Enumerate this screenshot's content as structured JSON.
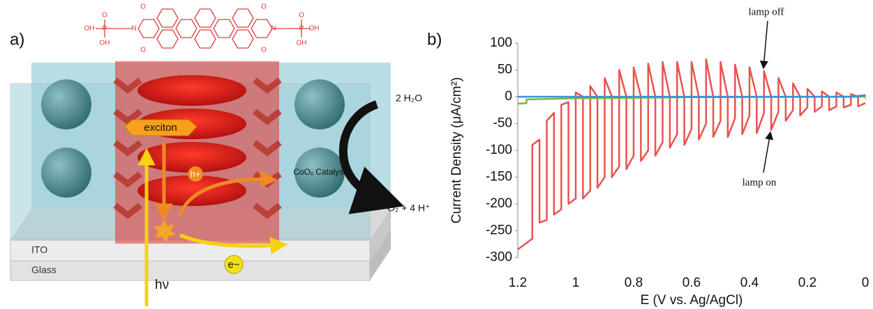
{
  "panel_a": {
    "label": "a)",
    "exciton": "exciton",
    "hole": "h+",
    "electron": "e−",
    "ito": "ITO",
    "glass": "Glass",
    "photon": "hν",
    "water": "2 H₂O",
    "products": "O₂ + 4 H⁺",
    "catalyst": "CoOₓ Catalyst",
    "molecule_atoms": [
      "O",
      "O",
      "O",
      "O",
      "N",
      "N",
      "P",
      "P",
      "O",
      "O",
      "OH",
      "OH",
      "OH",
      "OH"
    ]
  },
  "chart_data": {
    "type": "line",
    "label": "b)",
    "x_label": "E (V vs. Ag/AgCl)",
    "y_label": "Current Density (μA/cm²)",
    "xlim": [
      1.2,
      0
    ],
    "ylim": [
      -300,
      100
    ],
    "xticks": [
      1.2,
      1,
      0.8,
      0.6,
      0.4,
      0.2,
      0
    ],
    "yticks": [
      100,
      50,
      0,
      -50,
      -100,
      -150,
      -200,
      -250,
      -300
    ],
    "annotations": [
      "lamp off",
      "lamp on"
    ],
    "series": [
      {
        "color": "#e8534f",
        "x": [
          1.2,
          1.15,
          1.15,
          1.125,
          1.125,
          1.1,
          1.1,
          1.075,
          1.075,
          1.05,
          1.05,
          1.025,
          1.025,
          1.0,
          1.0,
          0.975,
          0.975,
          0.95,
          0.95,
          0.925,
          0.925,
          0.9,
          0.9,
          0.875,
          0.875,
          0.85,
          0.85,
          0.825,
          0.825,
          0.8,
          0.8,
          0.775,
          0.775,
          0.75,
          0.75,
          0.725,
          0.725,
          0.7,
          0.7,
          0.675,
          0.675,
          0.65,
          0.65,
          0.625,
          0.625,
          0.6,
          0.6,
          0.575,
          0.575,
          0.55,
          0.55,
          0.525,
          0.525,
          0.5,
          0.5,
          0.475,
          0.475,
          0.45,
          0.45,
          0.425,
          0.425,
          0.4,
          0.4,
          0.375,
          0.375,
          0.35,
          0.35,
          0.325,
          0.325,
          0.3,
          0.3,
          0.275,
          0.275,
          0.25,
          0.25,
          0.225,
          0.225,
          0.2,
          0.2,
          0.175,
          0.175,
          0.15,
          0.15,
          0.125,
          0.125,
          0.1,
          0.1,
          0.075,
          0.075,
          0.05,
          0.05,
          0.025,
          0.025,
          0
        ],
        "values": [
          -285,
          -265,
          -90,
          -80,
          -235,
          -230,
          -45,
          -30,
          -220,
          -210,
          -15,
          -10,
          -200,
          -190,
          8,
          0,
          -190,
          -175,
          20,
          0,
          -170,
          -150,
          35,
          0,
          -150,
          -130,
          50,
          0,
          -135,
          -110,
          55,
          0,
          -120,
          -100,
          62,
          0,
          -110,
          -85,
          65,
          0,
          -95,
          -70,
          65,
          0,
          -90,
          -60,
          65,
          0,
          -80,
          -50,
          70,
          0,
          -75,
          -45,
          65,
          0,
          -75,
          -40,
          60,
          0,
          -70,
          -35,
          55,
          0,
          -68,
          -30,
          48,
          0,
          -62,
          -28,
          35,
          0,
          -45,
          -25,
          25,
          0,
          -35,
          -20,
          15,
          0,
          -28,
          -18,
          10,
          0,
          -25,
          -18,
          8,
          0,
          -20,
          -15,
          5,
          0,
          -18,
          -12
        ]
      },
      {
        "color": "#7ab648",
        "x": [
          1.2,
          1.17,
          1.17,
          1.0,
          0.6,
          0
        ],
        "values": [
          -13,
          -12,
          -5,
          -3,
          -1,
          0
        ]
      },
      {
        "color": "#3a8fd6",
        "x": [
          1.2,
          0.05,
          0
        ],
        "values": [
          0,
          0,
          3
        ]
      }
    ]
  }
}
